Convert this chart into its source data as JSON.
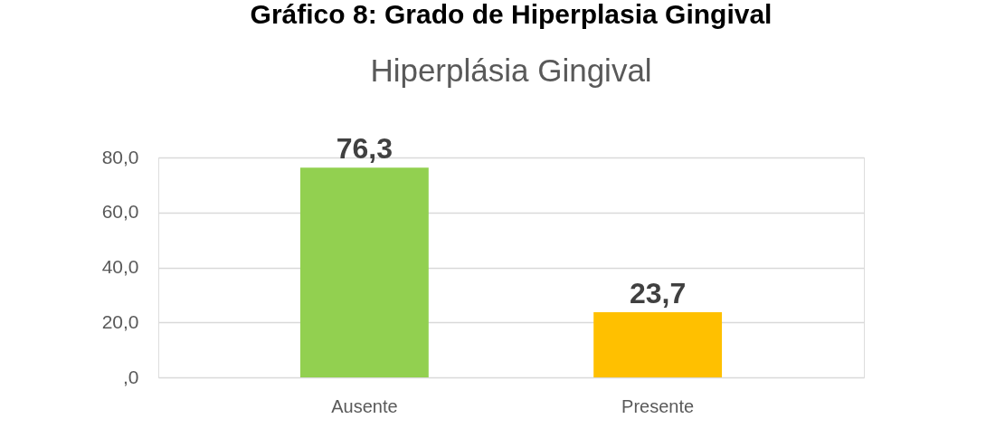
{
  "chart_data": {
    "type": "bar",
    "title": "Gráfico 8: Grado de Hiperplasia Gingival",
    "subtitle": "Hiperplásia Gingival",
    "categories": [
      "Ausente",
      "Presente"
    ],
    "values": [
      76.3,
      23.7
    ],
    "colors": [
      "#92d050",
      "#ffc000"
    ],
    "value_labels": [
      "76,3",
      "23,7"
    ],
    "ylim": [
      0,
      80
    ],
    "yticks": [
      {
        "value": 0,
        "label": ",0"
      },
      {
        "value": 20,
        "label": "20,0"
      },
      {
        "value": 40,
        "label": "40,0"
      },
      {
        "value": 60,
        "label": "60,0"
      },
      {
        "value": 80,
        "label": "80,0"
      }
    ],
    "grid": "y"
  }
}
